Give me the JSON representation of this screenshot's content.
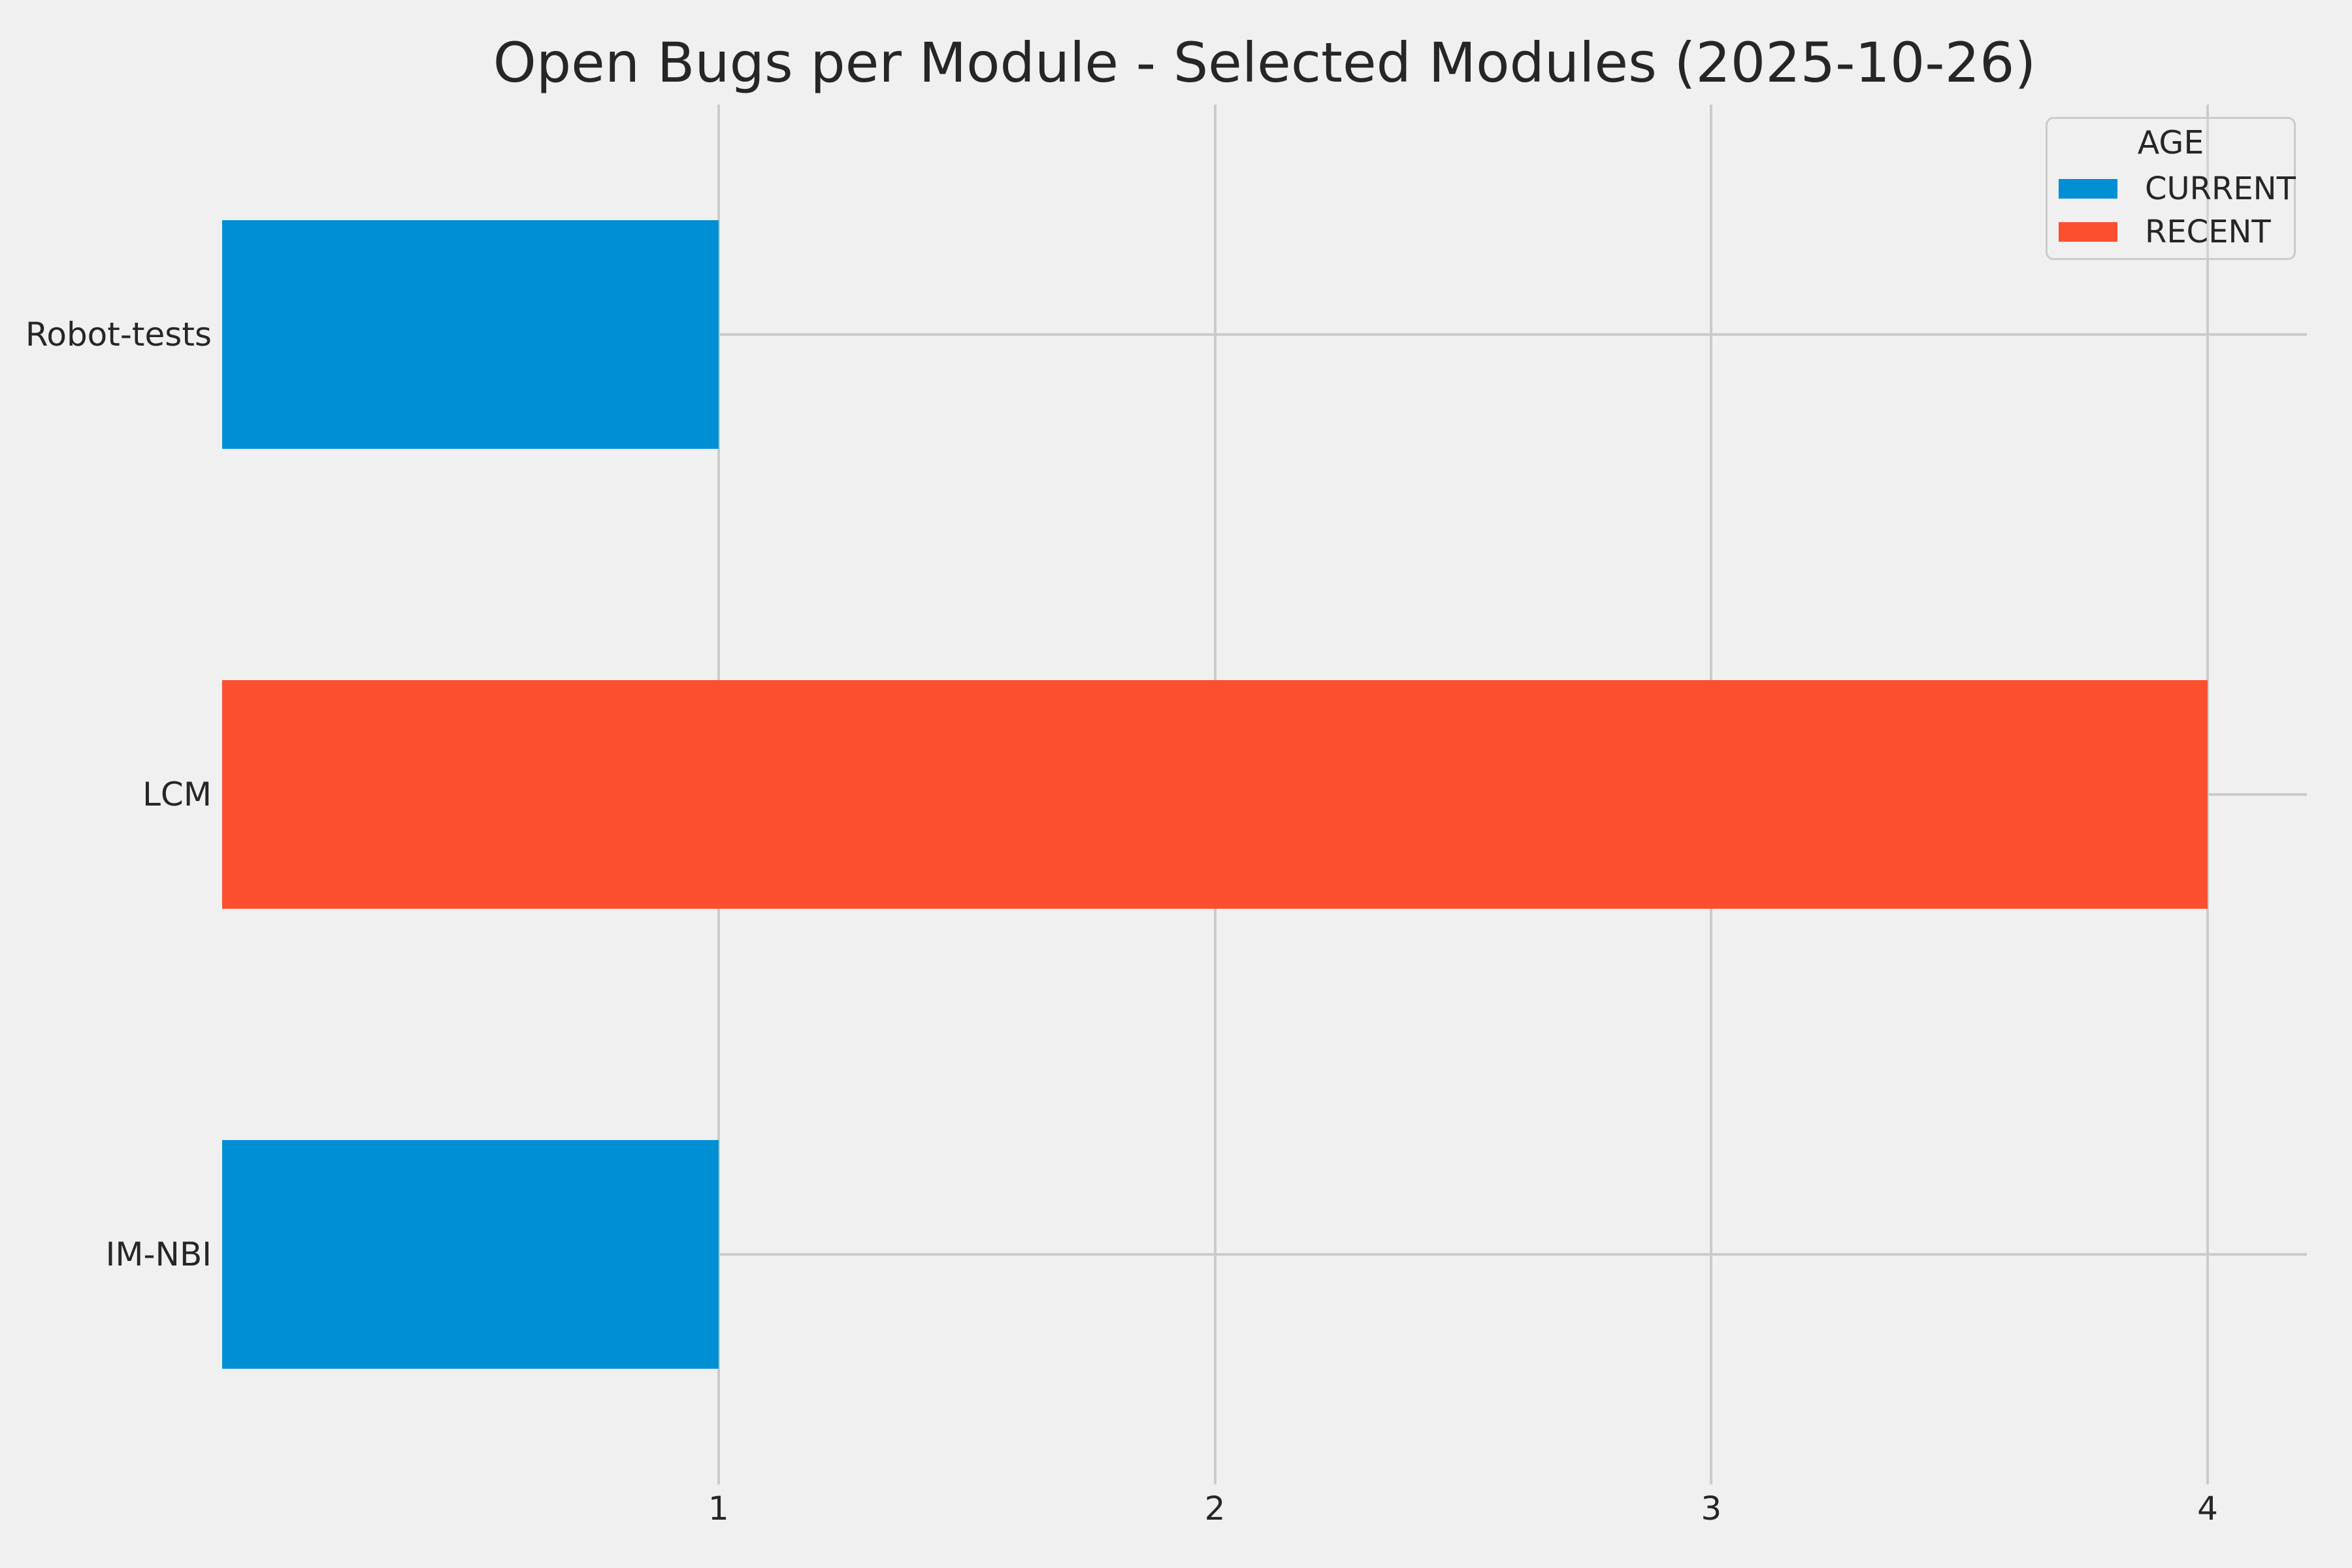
{
  "title": "Open Bugs per Module - Selected Modules (2025-10-26)",
  "legend": {
    "title": "AGE",
    "items": [
      {
        "label": "CURRENT",
        "color": "#008fd5"
      },
      {
        "label": "RECENT",
        "color": "#fc4f30"
      }
    ]
  },
  "chart_data": {
    "type": "bar",
    "orientation": "horizontal",
    "title": "Open Bugs per Module - Selected Modules (2025-10-26)",
    "categories": [
      "Robot-tests",
      "LCM",
      "IM-NBI"
    ],
    "values": [
      1,
      4,
      1
    ],
    "groups": [
      "CURRENT",
      "RECENT",
      "CURRENT"
    ],
    "series": [
      {
        "name": "CURRENT",
        "color": "#008fd5"
      },
      {
        "name": "RECENT",
        "color": "#fc4f30"
      }
    ],
    "xlabel": "",
    "ylabel": "",
    "xticks": [
      1,
      2,
      3,
      4
    ],
    "xlim": [
      0,
      4.2
    ],
    "grid": true,
    "legend_position": "upper right",
    "colors": {
      "background": "#f0f0f0",
      "grid": "#cbcbcb",
      "text": "#262626"
    }
  }
}
